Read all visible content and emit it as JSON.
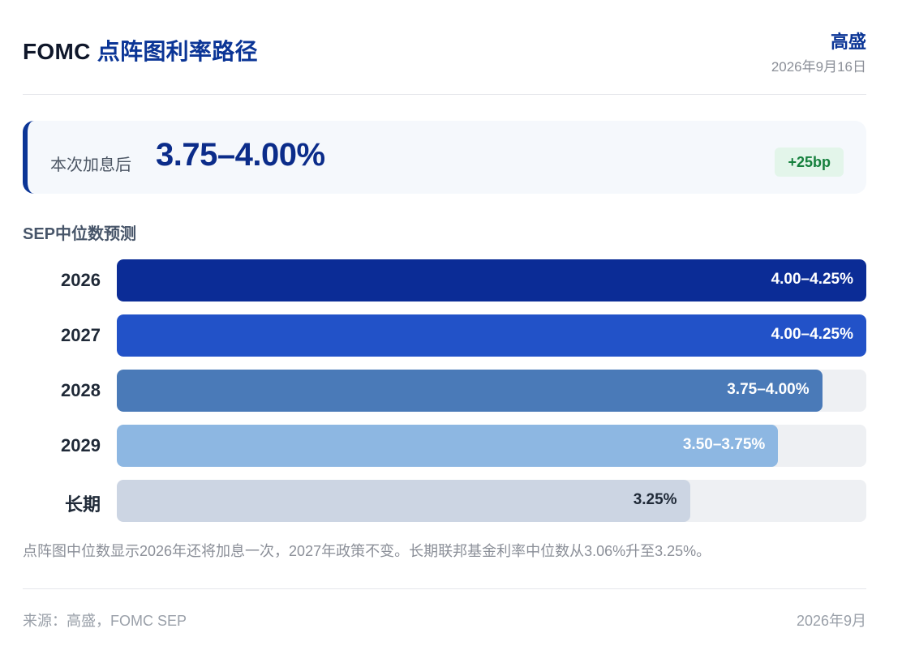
{
  "header": {
    "title_prefix": "FOMC ",
    "title_main": "点阵图利率路径",
    "source_name": "高盛",
    "date": "2026年9月16日"
  },
  "hero": {
    "label": "本次加息后",
    "value": "3.75–4.00%",
    "badge": "+25bp"
  },
  "section_title": "SEP中位数预测",
  "chart_data": {
    "type": "bar",
    "orientation": "horizontal",
    "title": "SEP中位数预测",
    "xlim": [
      0,
      4.25
    ],
    "categories": [
      "2026",
      "2027",
      "2028",
      "2029",
      "长期"
    ],
    "values": [
      4.25,
      4.25,
      4.0,
      3.75,
      3.25
    ],
    "labels": [
      "4.00–4.25%",
      "4.00–4.25%",
      "3.75–4.00%",
      "3.50–3.75%",
      "3.25%"
    ],
    "colors": [
      "#0b2c96",
      "#2252c8",
      "#4a7ab8",
      "#8db7e2",
      "#ccd5e3"
    ],
    "label_colors": [
      "#ffffff",
      "#ffffff",
      "#ffffff",
      "#ffffff",
      "#1f2937"
    ]
  },
  "note": "点阵图中位数显示2026年还将加息一次，2027年政策不变。长期联邦基金利率中位数从3.06%升至3.25%。",
  "footer": {
    "source": "来源：高盛，FOMC SEP",
    "date": "2026年9月"
  }
}
